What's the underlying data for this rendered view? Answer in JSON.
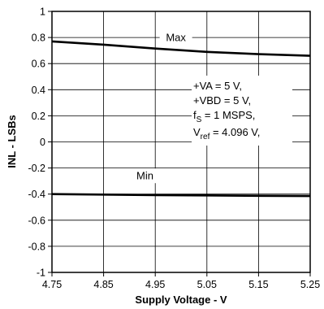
{
  "chart_data": {
    "type": "line",
    "title": "",
    "xlabel": "Supply Voltage - V",
    "ylabel": "INL - LSBs",
    "xlim": [
      4.75,
      5.25
    ],
    "ylim": [
      -1,
      1
    ],
    "x_ticks": [
      4.75,
      4.85,
      4.95,
      5.05,
      5.15,
      5.25
    ],
    "x_tick_labels": [
      "4.75",
      "4.85",
      "4.95",
      "5.05",
      "5.15",
      "5.25"
    ],
    "y_ticks": [
      1,
      0.8,
      0.6,
      0.4,
      0.2,
      0,
      -0.2,
      -0.4,
      -0.6,
      -0.8,
      -1
    ],
    "y_tick_labels": [
      "1",
      "0.8",
      "0.6",
      "0.4",
      "0.2",
      "0",
      "-0.2",
      "-0.4",
      "-0.6",
      "-0.8",
      "-1"
    ],
    "grid": true,
    "series": [
      {
        "name": "Max",
        "x": [
          4.75,
          4.85,
          4.95,
          5.05,
          5.15,
          5.25
        ],
        "y": [
          0.77,
          0.745,
          0.715,
          0.69,
          0.672,
          0.66
        ]
      },
      {
        "name": "Min",
        "x": [
          4.75,
          4.85,
          4.95,
          5.05,
          5.15,
          5.25
        ],
        "y": [
          -0.4,
          -0.404,
          -0.408,
          -0.41,
          -0.413,
          -0.415
        ]
      }
    ],
    "conditions": {
      "line1": "+VA = 5 V,",
      "line2": "+VBD = 5 V,",
      "line3_main": "f",
      "line3_sub": "S",
      "line3_rest": " = 1 MSPS,",
      "line4_main": "V",
      "line4_sub": "ref",
      "line4_rest": " = 4.096 V,"
    }
  }
}
